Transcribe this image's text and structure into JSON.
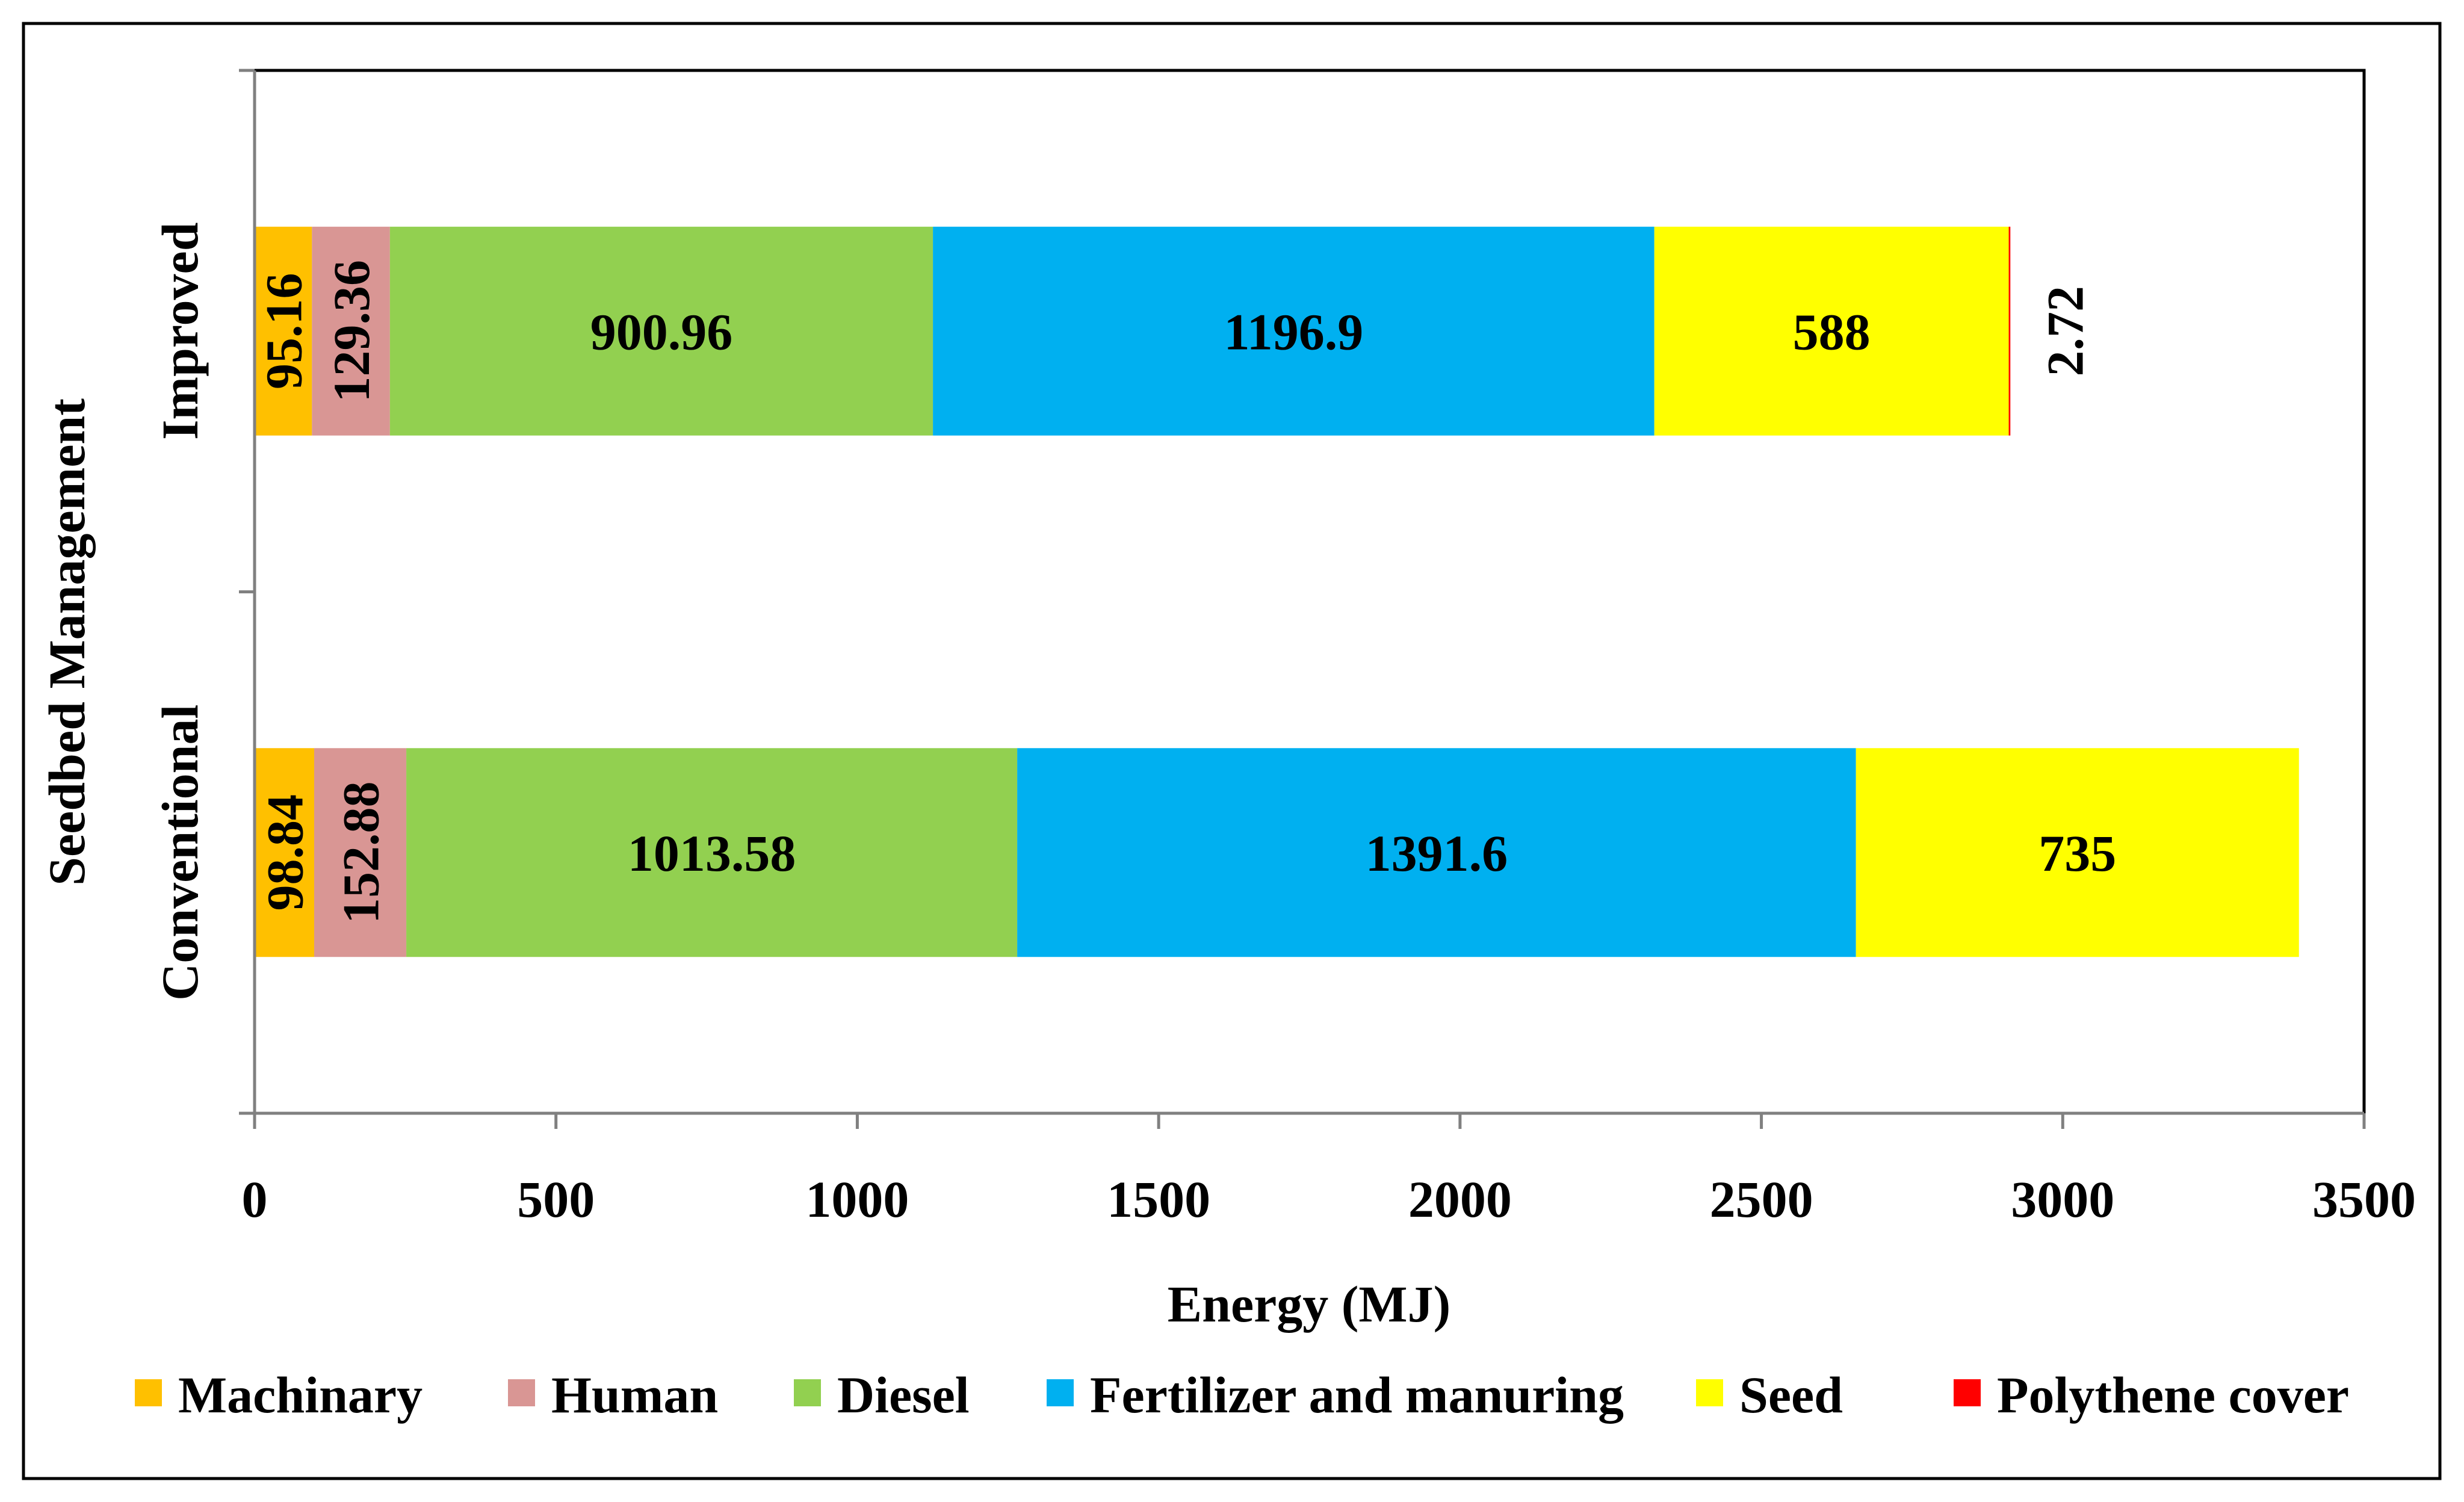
{
  "chart_data": {
    "type": "bar",
    "orientation": "horizontal",
    "stacked": true,
    "title": "",
    "xlabel": "Energy (MJ)",
    "ylabel": "Seedbed Management",
    "xlim": [
      0,
      3500
    ],
    "xticks": [
      0,
      500,
      1000,
      1500,
      2000,
      2500,
      3000,
      3500
    ],
    "grid": false,
    "legend_position": "bottom",
    "categories": [
      "Improved",
      "Conventional"
    ],
    "series": [
      {
        "name": "Machinary",
        "color": "#FFC000",
        "values": [
          95.16,
          98.84
        ],
        "labels": [
          "95.16",
          "98.84"
        ]
      },
      {
        "name": "Human",
        "color": "#D99694",
        "values": [
          129.36,
          152.88
        ],
        "labels": [
          "129.36",
          "152.88"
        ]
      },
      {
        "name": "Diesel",
        "color": "#92D050",
        "values": [
          900.96,
          1013.58
        ],
        "labels": [
          "900.96",
          "1013.58"
        ]
      },
      {
        "name": "Fertilizer and manuring",
        "color": "#00B0F0",
        "values": [
          1196.9,
          1391.6
        ],
        "labels": [
          "1196.9",
          "1391.6"
        ]
      },
      {
        "name": "Seed",
        "color": "#FFFF00",
        "values": [
          588,
          735
        ],
        "labels": [
          "588",
          "735"
        ]
      },
      {
        "name": "Polythene cover",
        "color": "#FF0000",
        "values": [
          2.72,
          0
        ],
        "labels": [
          "2.72",
          ""
        ]
      }
    ]
  }
}
